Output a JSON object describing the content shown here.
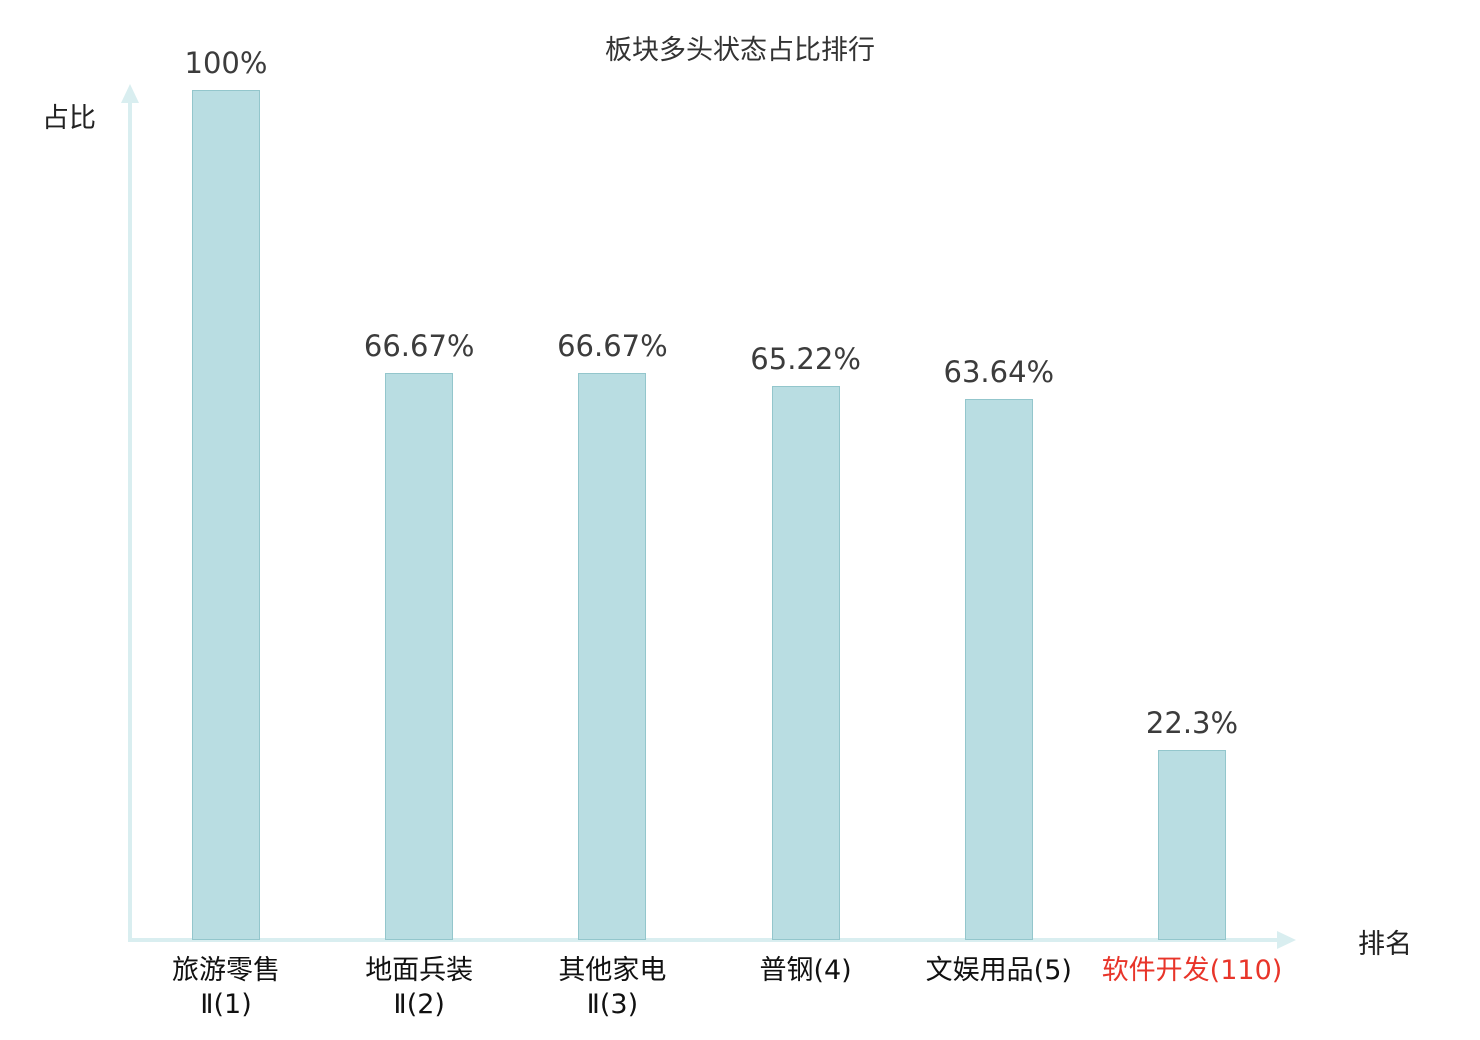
{
  "chart": {
    "title": "板块多头状态占比排行",
    "y_axis_label": "占比",
    "x_axis_label": "排名"
  },
  "chart_data": {
    "type": "bar",
    "title": "板块多头状态占比排行",
    "xlabel": "排名",
    "ylabel": "占比",
    "ylim": [
      0,
      100
    ],
    "grid": false,
    "legend_position": "none",
    "categories": [
      "旅游零售Ⅱ(1)",
      "地面兵装Ⅱ(2)",
      "其他家电Ⅱ(3)",
      "普钢(4)",
      "文娱用品(5)",
      "软件开发(110)"
    ],
    "category_lines": [
      [
        "旅游零售",
        "Ⅱ(1)"
      ],
      [
        "地面兵装",
        "Ⅱ(2)"
      ],
      [
        "其他家电",
        "Ⅱ(3)"
      ],
      [
        "普钢(4)"
      ],
      [
        "文娱用品(5)"
      ],
      [
        "软件开发(110)"
      ]
    ],
    "values": [
      100,
      66.67,
      66.67,
      65.22,
      63.64,
      22.3
    ],
    "value_labels": [
      "100%",
      "66.67%",
      "66.67%",
      "65.22%",
      "63.64%",
      "22.3%"
    ],
    "highlight_index": 5,
    "colors": {
      "bar_fill": "#b9dde2",
      "bar_border": "#93c6cc",
      "axis": "#d9eef0",
      "title_text": "#333333",
      "axis_label_text": "#222222",
      "value_text": "#3c3c3c",
      "category_text": "#111111",
      "highlight_text": "#e8352a"
    }
  }
}
